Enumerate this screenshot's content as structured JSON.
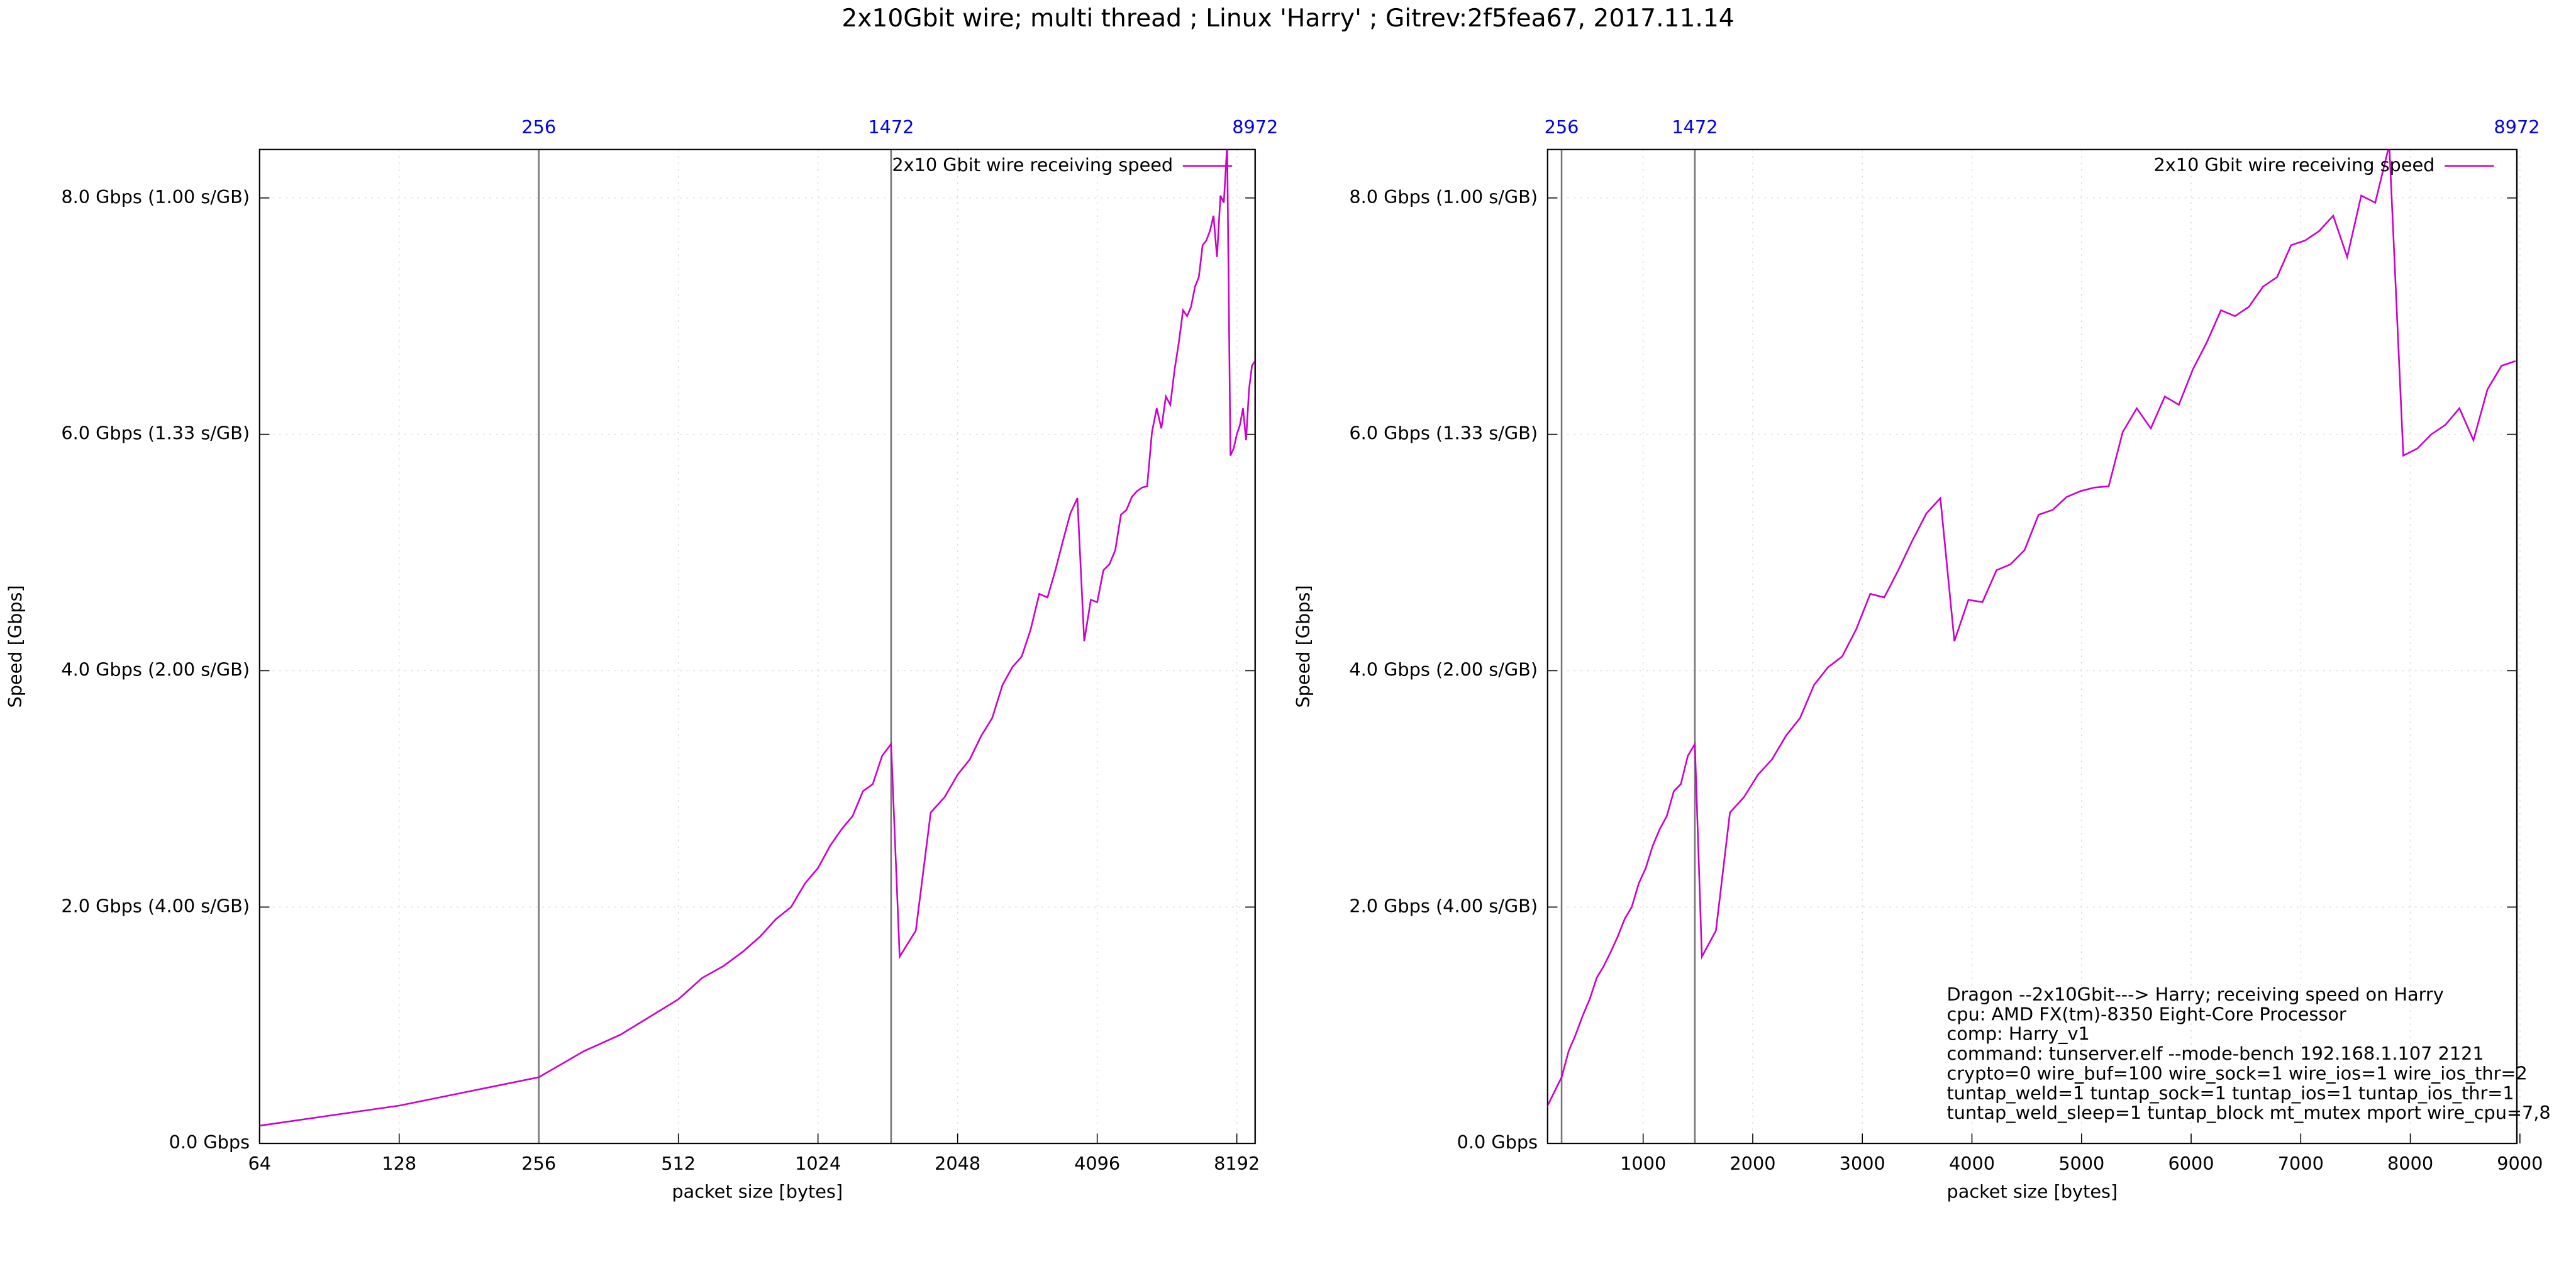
{
  "title": "2x10Gbit wire; multi thread ; Linux 'Harry' ; Gitrev:2f5fea67, 2017.11.14",
  "chart_data": [
    {
      "type": "line",
      "xlog": true,
      "grid": true,
      "legend": "top-right",
      "xlabel": "packet size [bytes]",
      "ylabel": "Speed [Gbps]",
      "xlim": [
        64,
        8972
      ],
      "ylim": [
        0,
        8.41
      ],
      "xticks": [
        64,
        128,
        256,
        512,
        1024,
        2048,
        4096,
        8192
      ],
      "x2ticks": [
        256,
        1472,
        8972
      ],
      "yticks": [
        {
          "value": 0,
          "label": "0.0 Gbps"
        },
        {
          "value": 2,
          "label": "2.0 Gbps (4.00 s/GB)"
        },
        {
          "value": 4,
          "label": "4.0 Gbps (2.00 s/GB)"
        },
        {
          "value": 6,
          "label": "6.0 Gbps (1.33 s/GB)"
        },
        {
          "value": 8,
          "label": "8.0 Gbps (1.00 s/GB)"
        }
      ],
      "x": [
        64,
        128,
        256,
        320,
        384,
        448,
        512,
        576,
        640,
        704,
        768,
        832,
        896,
        960,
        1024,
        1088,
        1152,
        1216,
        1280,
        1344,
        1408,
        1472,
        1536,
        1664,
        1792,
        1920,
        2048,
        2176,
        2304,
        2432,
        2560,
        2688,
        2816,
        2944,
        3072,
        3200,
        3328,
        3456,
        3584,
        3712,
        3840,
        3968,
        4096,
        4224,
        4352,
        4480,
        4608,
        4736,
        4864,
        4992,
        5120,
        5248,
        5376,
        5504,
        5632,
        5760,
        5888,
        6016,
        6144,
        6272,
        6400,
        6528,
        6656,
        6784,
        6912,
        7040,
        7168,
        7296,
        7424,
        7552,
        7680,
        7808,
        7936,
        8064,
        8192,
        8320,
        8448,
        8576,
        8704,
        8832,
        8960
      ],
      "series": [
        {
          "name": "2x10 Gbit wire receiving speed",
          "color": "#cc00cc",
          "values": [
            0.15,
            0.32,
            0.56,
            0.78,
            0.92,
            1.08,
            1.22,
            1.4,
            1.5,
            1.62,
            1.75,
            1.9,
            2.0,
            2.2,
            2.33,
            2.52,
            2.66,
            2.77,
            2.98,
            3.04,
            3.28,
            3.38,
            1.58,
            1.8,
            2.8,
            2.93,
            3.12,
            3.25,
            3.45,
            3.6,
            3.88,
            4.03,
            4.12,
            4.35,
            4.65,
            4.62,
            4.85,
            5.1,
            5.33,
            5.46,
            4.25,
            4.6,
            4.58,
            4.85,
            4.9,
            5.02,
            5.32,
            5.36,
            5.47,
            5.52,
            5.55,
            5.56,
            6.02,
            6.22,
            6.05,
            6.32,
            6.25,
            6.55,
            6.78,
            7.05,
            7.0,
            7.08,
            7.25,
            7.33,
            7.6,
            7.64,
            7.72,
            7.85,
            7.5,
            8.02,
            7.96,
            8.45,
            5.82,
            5.88,
            6.0,
            6.08,
            6.22,
            5.95,
            6.38,
            6.58,
            6.62
          ]
        }
      ]
    },
    {
      "type": "line",
      "xlog": false,
      "grid": true,
      "legend": "top-right",
      "xlabel": "packet size [bytes]",
      "ylabel": "Speed [Gbps]",
      "xlim": [
        128,
        8972
      ],
      "ylim": [
        0,
        8.41
      ],
      "xticks": [
        1000,
        2000,
        3000,
        4000,
        5000,
        6000,
        7000,
        8000,
        9000
      ],
      "x2ticks": [
        256,
        1472,
        8972
      ],
      "yticks": [
        {
          "value": 0,
          "label": "0.0 Gbps"
        },
        {
          "value": 2,
          "label": "2.0 Gbps (4.00 s/GB)"
        },
        {
          "value": 4,
          "label": "4.0 Gbps (2.00 s/GB)"
        },
        {
          "value": 6,
          "label": "6.0 Gbps (1.33 s/GB)"
        },
        {
          "value": 8,
          "label": "8.0 Gbps (1.00 s/GB)"
        }
      ],
      "x": [
        64,
        128,
        256,
        320,
        384,
        448,
        512,
        576,
        640,
        704,
        768,
        832,
        896,
        960,
        1024,
        1088,
        1152,
        1216,
        1280,
        1344,
        1408,
        1472,
        1536,
        1664,
        1792,
        1920,
        2048,
        2176,
        2304,
        2432,
        2560,
        2688,
        2816,
        2944,
        3072,
        3200,
        3328,
        3456,
        3584,
        3712,
        3840,
        3968,
        4096,
        4224,
        4352,
        4480,
        4608,
        4736,
        4864,
        4992,
        5120,
        5248,
        5376,
        5504,
        5632,
        5760,
        5888,
        6016,
        6144,
        6272,
        6400,
        6528,
        6656,
        6784,
        6912,
        7040,
        7168,
        7296,
        7424,
        7552,
        7680,
        7808,
        7936,
        8064,
        8192,
        8320,
        8448,
        8576,
        8704,
        8832,
        8960
      ],
      "series": [
        {
          "name": "2x10 Gbit wire receiving speed",
          "color": "#cc00cc",
          "values": [
            0.15,
            0.32,
            0.56,
            0.78,
            0.92,
            1.08,
            1.22,
            1.4,
            1.5,
            1.62,
            1.75,
            1.9,
            2.0,
            2.2,
            2.33,
            2.52,
            2.66,
            2.77,
            2.98,
            3.04,
            3.28,
            3.38,
            1.58,
            1.8,
            2.8,
            2.93,
            3.12,
            3.25,
            3.45,
            3.6,
            3.88,
            4.03,
            4.12,
            4.35,
            4.65,
            4.62,
            4.85,
            5.1,
            5.33,
            5.46,
            4.25,
            4.6,
            4.58,
            4.85,
            4.9,
            5.02,
            5.32,
            5.36,
            5.47,
            5.52,
            5.55,
            5.56,
            6.02,
            6.22,
            6.05,
            6.32,
            6.25,
            6.55,
            6.78,
            7.05,
            7.0,
            7.08,
            7.25,
            7.33,
            7.6,
            7.64,
            7.72,
            7.85,
            7.5,
            8.02,
            7.96,
            8.45,
            5.82,
            5.88,
            6.0,
            6.08,
            6.22,
            5.95,
            6.38,
            6.58,
            6.62
          ]
        }
      ],
      "annotation": [
        "Dragon --2x10Gbit---> Harry; receiving speed on Harry",
        "cpu: AMD FX(tm)-8350 Eight-Core Processor",
        "comp: Harry_v1",
        "command: tunserver.elf --mode-bench 192.168.1.107 2121",
        "crypto=0 wire_buf=100 wire_sock=1 wire_ios=1 wire_ios_thr=2",
        "tuntap_weld=1 tuntap_sock=1 tuntap_ios=1 tuntap_ios_thr=1",
        "tuntap_weld_sleep=1 tuntap_block mt_mutex mport wire_cpu=7,8"
      ]
    }
  ]
}
